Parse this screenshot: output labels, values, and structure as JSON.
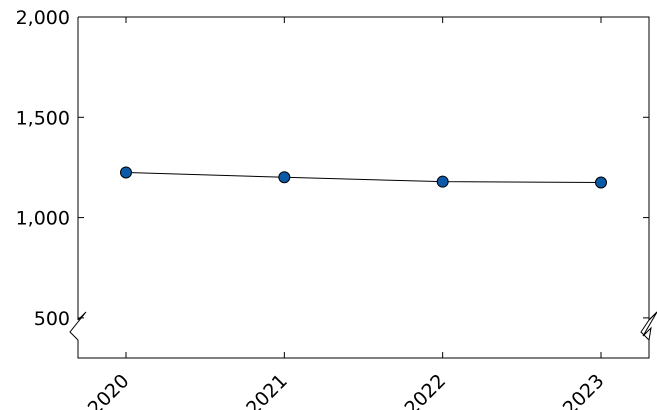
{
  "chart_data": {
    "type": "line",
    "title": "",
    "xlabel": "",
    "ylabel": "",
    "categories": [
      "2020",
      "2021",
      "2022",
      "2023"
    ],
    "series": [
      {
        "values": [
          1225,
          1201,
          1179,
          1175
        ],
        "color": "#0b5aa8"
      }
    ],
    "ylim": [
      300,
      2000
    ],
    "yticks": [
      500,
      1000,
      1500,
      2000
    ],
    "ytick_labels": [
      "500",
      "1,000",
      "1,500",
      "2,000"
    ],
    "axis_break": true,
    "grid": false,
    "marker": "circle"
  }
}
